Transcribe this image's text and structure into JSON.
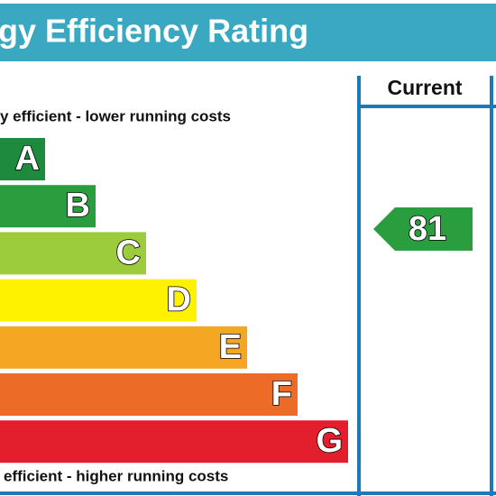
{
  "header": {
    "title": "gy Efficiency Rating"
  },
  "top_note": "y efficient - lower running costs",
  "bottom_note": "efficient - higher running costs",
  "bands": [
    {
      "letter": "A",
      "color": "#1e8a3e"
    },
    {
      "letter": "B",
      "color": "#2a9d3f"
    },
    {
      "letter": "C",
      "color": "#9ccb3b"
    },
    {
      "letter": "D",
      "color": "#fff200"
    },
    {
      "letter": "E",
      "color": "#f5a623"
    },
    {
      "letter": "F",
      "color": "#ec6b26"
    },
    {
      "letter": "G",
      "color": "#e31e2d"
    }
  ],
  "columns": [
    {
      "label": "Current",
      "value": 81,
      "color": "#2a9d3f"
    }
  ]
}
